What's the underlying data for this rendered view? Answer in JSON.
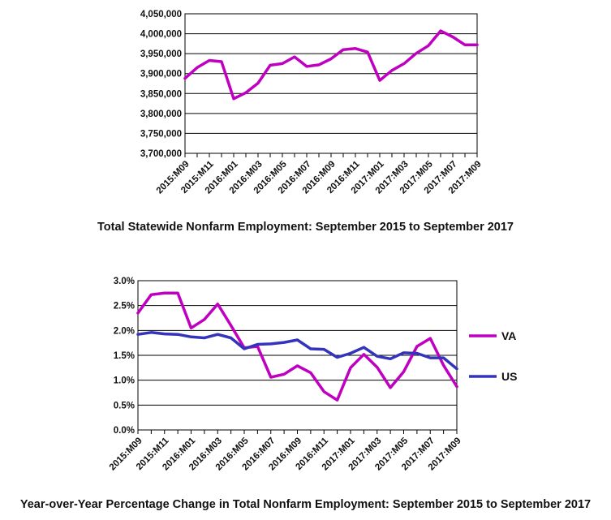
{
  "chart_data": [
    {
      "type": "line",
      "title": "Total Statewide Nonfarm Employment:  September 2015 to September 2017",
      "xlabel": "",
      "ylabel": "",
      "x": [
        "2015:M09",
        "2015:M10",
        "2015:M11",
        "2015:M12",
        "2016:M01",
        "2016:M02",
        "2016:M03",
        "2016:M04",
        "2016:M05",
        "2016:M06",
        "2016:M07",
        "2016:M08",
        "2016:M09",
        "2016:M10",
        "2016:M11",
        "2016:M12",
        "2017:M01",
        "2017:M02",
        "2017:M03",
        "2017:M04",
        "2017:M05",
        "2017:M06",
        "2017:M07",
        "2017:M08",
        "2017:M09"
      ],
      "x_tick_labels": [
        "2015:M09",
        "2015:M11",
        "2016:M01",
        "2016:M03",
        "2016:M05",
        "2016:M07",
        "2016:M09",
        "2016:M11",
        "2017:M01",
        "2017:M03",
        "2017:M05",
        "2017:M07",
        "2017:M09"
      ],
      "ylim": [
        3700000,
        4050000
      ],
      "y_ticks": [
        3700000,
        3750000,
        3800000,
        3850000,
        3900000,
        3950000,
        4000000,
        4050000
      ],
      "y_tick_labels": [
        "3,700,000",
        "3,750,000",
        "3,800,000",
        "3,850,000",
        "3,900,000",
        "3,950,000",
        "4,000,000",
        "4,050,000"
      ],
      "grid": true,
      "legend": "none",
      "series": [
        {
          "color": "#c000c0",
          "values": [
            3888000,
            3915000,
            3933000,
            3930000,
            3837000,
            3852000,
            3876000,
            3921000,
            3925000,
            3942000,
            3918000,
            3922000,
            3937000,
            3960000,
            3963000,
            3954000,
            3883000,
            3908000,
            3925000,
            3951000,
            3970000,
            4007000,
            3992000,
            3972000,
            3972000
          ]
        }
      ]
    },
    {
      "type": "line",
      "title": "Year-over-Year Percentage Change in Total Nonfarm Employment: September 2015 to September 2017",
      "xlabel": "",
      "ylabel": "",
      "x": [
        "2015:M09",
        "2015:M10",
        "2015:M11",
        "2015:M12",
        "2016:M01",
        "2016:M02",
        "2016:M03",
        "2016:M04",
        "2016:M05",
        "2016:M06",
        "2016:M07",
        "2016:M08",
        "2016:M09",
        "2016:M10",
        "2016:M11",
        "2016:M12",
        "2017:M01",
        "2017:M02",
        "2017:M03",
        "2017:M04",
        "2017:M05",
        "2017:M06",
        "2017:M07",
        "2017:M08",
        "2017:M09"
      ],
      "x_tick_labels": [
        "2015:M09",
        "2015:M11",
        "2016:M01",
        "2016:M03",
        "2016:M05",
        "2016:M07",
        "2016:M09",
        "2016:M11",
        "2017:M01",
        "2017:M03",
        "2017:M05",
        "2017:M07",
        "2017:M09"
      ],
      "ylim": [
        0.0,
        3.0
      ],
      "y_ticks": [
        0.0,
        0.5,
        1.0,
        1.5,
        2.0,
        2.5,
        3.0
      ],
      "y_tick_labels": [
        "0.0%",
        "0.5%",
        "1.0%",
        "1.5%",
        "2.0%",
        "2.5%",
        "3.0%"
      ],
      "grid": true,
      "legend": "right",
      "series": [
        {
          "name": "VA",
          "color": "#c000c0",
          "values": [
            2.35,
            2.72,
            2.75,
            2.75,
            2.05,
            2.22,
            2.53,
            2.1,
            1.65,
            1.68,
            1.06,
            1.12,
            1.29,
            1.15,
            0.77,
            0.6,
            1.25,
            1.52,
            1.26,
            0.85,
            1.17,
            1.68,
            1.84,
            1.3,
            0.87
          ]
        },
        {
          "name": "US",
          "color": "#3333bb",
          "values": [
            1.92,
            1.96,
            1.93,
            1.92,
            1.87,
            1.85,
            1.92,
            1.85,
            1.63,
            1.72,
            1.73,
            1.76,
            1.81,
            1.63,
            1.62,
            1.46,
            1.54,
            1.66,
            1.48,
            1.43,
            1.55,
            1.54,
            1.45,
            1.45,
            1.23
          ]
        }
      ]
    }
  ]
}
